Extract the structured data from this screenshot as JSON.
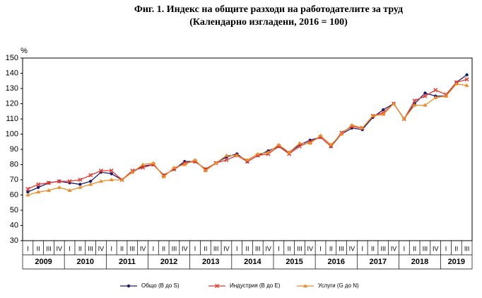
{
  "chart_data": {
    "type": "line",
    "title": "Фиг. 1. Индекс на общите разходи на работодателите за труд",
    "subtitle": "(Календарно изгладени, 2016 = 100)",
    "y_label": "%",
    "categories": [
      "I",
      "II",
      "III",
      "IV",
      "I",
      "II",
      "III",
      "IV",
      "I",
      "II",
      "III",
      "IV",
      "I",
      "II",
      "III",
      "IV",
      "I",
      "II",
      "III",
      "IV",
      "I",
      "II",
      "III",
      "IV",
      "I",
      "II",
      "III",
      "IV",
      "I",
      "II",
      "III",
      "IV",
      "I",
      "II",
      "III",
      "IV",
      "I",
      "II",
      "III",
      "IV",
      "I",
      "II",
      "III"
    ],
    "groups": [
      "2009",
      "2010",
      "2011",
      "2012",
      "2013",
      "2014",
      "2015",
      "2016",
      "2017",
      "2018",
      "2019"
    ],
    "ylim": [
      30,
      150
    ],
    "yticks": [
      30,
      40,
      50,
      60,
      70,
      80,
      90,
      100,
      110,
      120,
      130,
      140,
      150
    ],
    "series": [
      {
        "name": "Общо (B до S)",
        "color": "#1c1c6e",
        "marker": "circle",
        "values": [
          62,
          65,
          68,
          69,
          68,
          67,
          69,
          75,
          74,
          70,
          75,
          79,
          80,
          73,
          77,
          82,
          82,
          77,
          81,
          85,
          87,
          82,
          86,
          89,
          92,
          88,
          93,
          96,
          98,
          92,
          100,
          104,
          103,
          111,
          116,
          120,
          110,
          120,
          127,
          125,
          125,
          134,
          139
        ]
      },
      {
        "name": "Индустрия (B до E)",
        "color": "#e8372b",
        "marker": "cross",
        "values": [
          64,
          67,
          68,
          69,
          69,
          70,
          73,
          76,
          76,
          70,
          76,
          78,
          80,
          73,
          77,
          81,
          82,
          77,
          81,
          83,
          86,
          82,
          86,
          87,
          92,
          87,
          92,
          95,
          98,
          92,
          101,
          105,
          104,
          112,
          114,
          120,
          110,
          122,
          125,
          129,
          126,
          134,
          136
        ]
      },
      {
        "name": "Услуги (G до N)",
        "color": "#f08a24",
        "marker": "triangle",
        "values": [
          60,
          62,
          63,
          65,
          63,
          65,
          67,
          69,
          70,
          70,
          75,
          80,
          81,
          72,
          78,
          80,
          83,
          76,
          81,
          86,
          86,
          83,
          87,
          88,
          93,
          88,
          94,
          94,
          99,
          93,
          100,
          106,
          104,
          112,
          113,
          120,
          110,
          119,
          119,
          124,
          125,
          133,
          132
        ]
      }
    ]
  }
}
